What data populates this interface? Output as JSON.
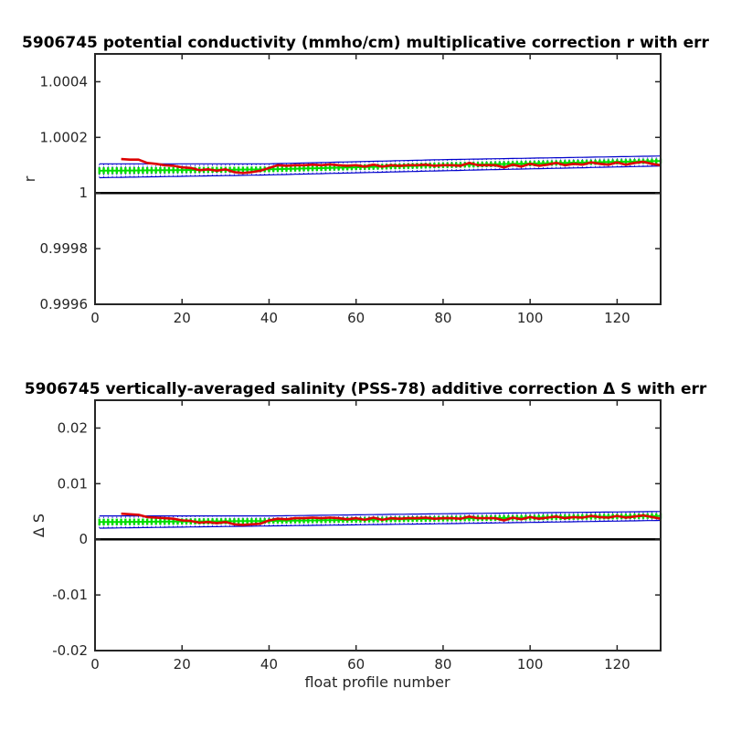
{
  "chart_data": [
    {
      "type": "line",
      "title": "5906745 potential conductivity (mmho/cm) multiplicative correction r with err",
      "xlabel": "",
      "ylabel": "r",
      "xlim": [
        0,
        130
      ],
      "ylim": [
        0.9996,
        1.0005
      ],
      "xticks": [
        0,
        20,
        40,
        60,
        80,
        100,
        120
      ],
      "yticks": [
        0.9996,
        0.9998,
        1,
        1.0002,
        1.0004
      ],
      "ytick_labels": [
        "0.9996",
        "0.9998",
        "1",
        "1.0002",
        "1.0004"
      ],
      "reference_line": 1,
      "grid": false,
      "colors": {
        "error_band": "#0000cc",
        "fit_band": "#00dd00",
        "series": "#dd0000",
        "reference": "#000000"
      },
      "series": [
        {
          "role": "fit-with-2x-error",
          "style": "blue-dotted-band",
          "x": [
            1,
            40,
            80,
            130
          ],
          "y": [
            1.00008,
            1.000085,
            1.0001,
            1.000115
          ],
          "err": [
            2.5e-05,
            2e-05,
            2e-05,
            1.8e-05
          ]
        },
        {
          "role": "fit-with-1x-error",
          "style": "green-band",
          "x": [
            1,
            40,
            80,
            130
          ],
          "y": [
            1.00008,
            1.000085,
            1.0001,
            1.000115
          ],
          "err": [
            1.2e-05,
            1e-05,
            1e-05,
            9e-06
          ]
        },
        {
          "role": "profile-correction",
          "style": "red-line",
          "x": [
            6,
            8,
            10,
            12,
            14,
            16,
            18,
            20,
            22,
            24,
            26,
            28,
            30,
            32,
            34,
            36,
            38,
            40,
            42,
            44,
            46,
            48,
            50,
            52,
            54,
            56,
            58,
            60,
            62,
            64,
            66,
            68,
            70,
            72,
            74,
            76,
            78,
            80,
            82,
            84,
            86,
            88,
            90,
            92,
            94,
            96,
            98,
            100,
            102,
            104,
            106,
            108,
            110,
            112,
            114,
            116,
            118,
            120,
            122,
            124,
            126,
            128,
            130
          ],
          "y": [
            1.000122,
            1.00012,
            1.00012,
            1.000108,
            1.000105,
            1.0001,
            1.000098,
            1.000092,
            1.00009,
            1.000082,
            1.000085,
            1.00008,
            1.000085,
            1.000075,
            1.000072,
            1.000075,
            1.00008,
            1.00009,
            1.0001,
            1.000098,
            1.0001,
            1.0001,
            1.000102,
            1.0001,
            1.000103,
            1.0001,
            1.000098,
            1.0001,
            1.000095,
            1.000102,
            1.000095,
            1.0001,
            1.000098,
            1.0001,
            1.0001,
            1.000102,
            1.000098,
            1.0001,
            1.0001,
            1.000098,
            1.000108,
            1.0001,
            1.0001,
            1.0001,
            1.000092,
            1.000102,
            1.000095,
            1.000105,
            1.000098,
            1.000102,
            1.000108,
            1.0001,
            1.000105,
            1.000102,
            1.00011,
            1.000105,
            1.000102,
            1.00011,
            1.000102,
            1.000108,
            1.000112,
            1.000105,
            1.0001
          ]
        }
      ]
    },
    {
      "type": "line",
      "title": "5906745 vertically-averaged salinity (PSS-78) additive correction Δ S with err",
      "xlabel": "float profile number",
      "ylabel": "Δ S",
      "xlim": [
        0,
        130
      ],
      "ylim": [
        -0.02,
        0.025
      ],
      "xticks": [
        0,
        20,
        40,
        60,
        80,
        100,
        120
      ],
      "yticks": [
        -0.02,
        -0.01,
        0,
        0.01,
        0.02
      ],
      "ytick_labels": [
        "-0.02",
        "-0.01",
        "0",
        "0.01",
        "0.02"
      ],
      "reference_line": 0,
      "grid": false,
      "colors": {
        "error_band": "#0000cc",
        "fit_band": "#00dd00",
        "series": "#dd0000",
        "reference": "#000000"
      },
      "series": [
        {
          "role": "fit-with-2x-error",
          "style": "blue-dotted-band",
          "x": [
            1,
            40,
            80,
            130
          ],
          "y": [
            0.0031,
            0.0033,
            0.0037,
            0.0042
          ],
          "err": [
            0.0011,
            0.0009,
            0.0009,
            0.0008
          ]
        },
        {
          "role": "fit-with-1x-error",
          "style": "green-band",
          "x": [
            1,
            40,
            80,
            130
          ],
          "y": [
            0.0031,
            0.0033,
            0.0037,
            0.0042
          ],
          "err": [
            0.0006,
            0.0005,
            0.0005,
            0.0005
          ]
        },
        {
          "role": "profile-correction",
          "style": "red-line",
          "x": [
            6,
            8,
            10,
            12,
            14,
            16,
            18,
            20,
            22,
            24,
            26,
            28,
            30,
            32,
            34,
            36,
            38,
            40,
            42,
            44,
            46,
            48,
            50,
            52,
            54,
            56,
            58,
            60,
            62,
            64,
            66,
            68,
            70,
            72,
            74,
            76,
            78,
            80,
            82,
            84,
            86,
            88,
            90,
            92,
            94,
            96,
            98,
            100,
            102,
            104,
            106,
            108,
            110,
            112,
            114,
            116,
            118,
            120,
            122,
            124,
            126,
            128,
            130
          ],
          "y": [
            0.0046,
            0.0045,
            0.0044,
            0.004,
            0.0039,
            0.0038,
            0.0037,
            0.0034,
            0.0033,
            0.003,
            0.0031,
            0.0029,
            0.0031,
            0.0027,
            0.0026,
            0.0027,
            0.0028,
            0.0034,
            0.0037,
            0.0036,
            0.0038,
            0.0038,
            0.0039,
            0.0038,
            0.0039,
            0.0038,
            0.0036,
            0.0038,
            0.0035,
            0.0039,
            0.0035,
            0.0038,
            0.0037,
            0.0038,
            0.0038,
            0.0039,
            0.0037,
            0.0038,
            0.0038,
            0.0037,
            0.0041,
            0.0038,
            0.0038,
            0.0038,
            0.0034,
            0.0039,
            0.0036,
            0.004,
            0.0037,
            0.0039,
            0.0041,
            0.0038,
            0.004,
            0.0039,
            0.0042,
            0.004,
            0.0039,
            0.0042,
            0.0039,
            0.0041,
            0.0043,
            0.004,
            0.0037
          ]
        }
      ]
    }
  ]
}
